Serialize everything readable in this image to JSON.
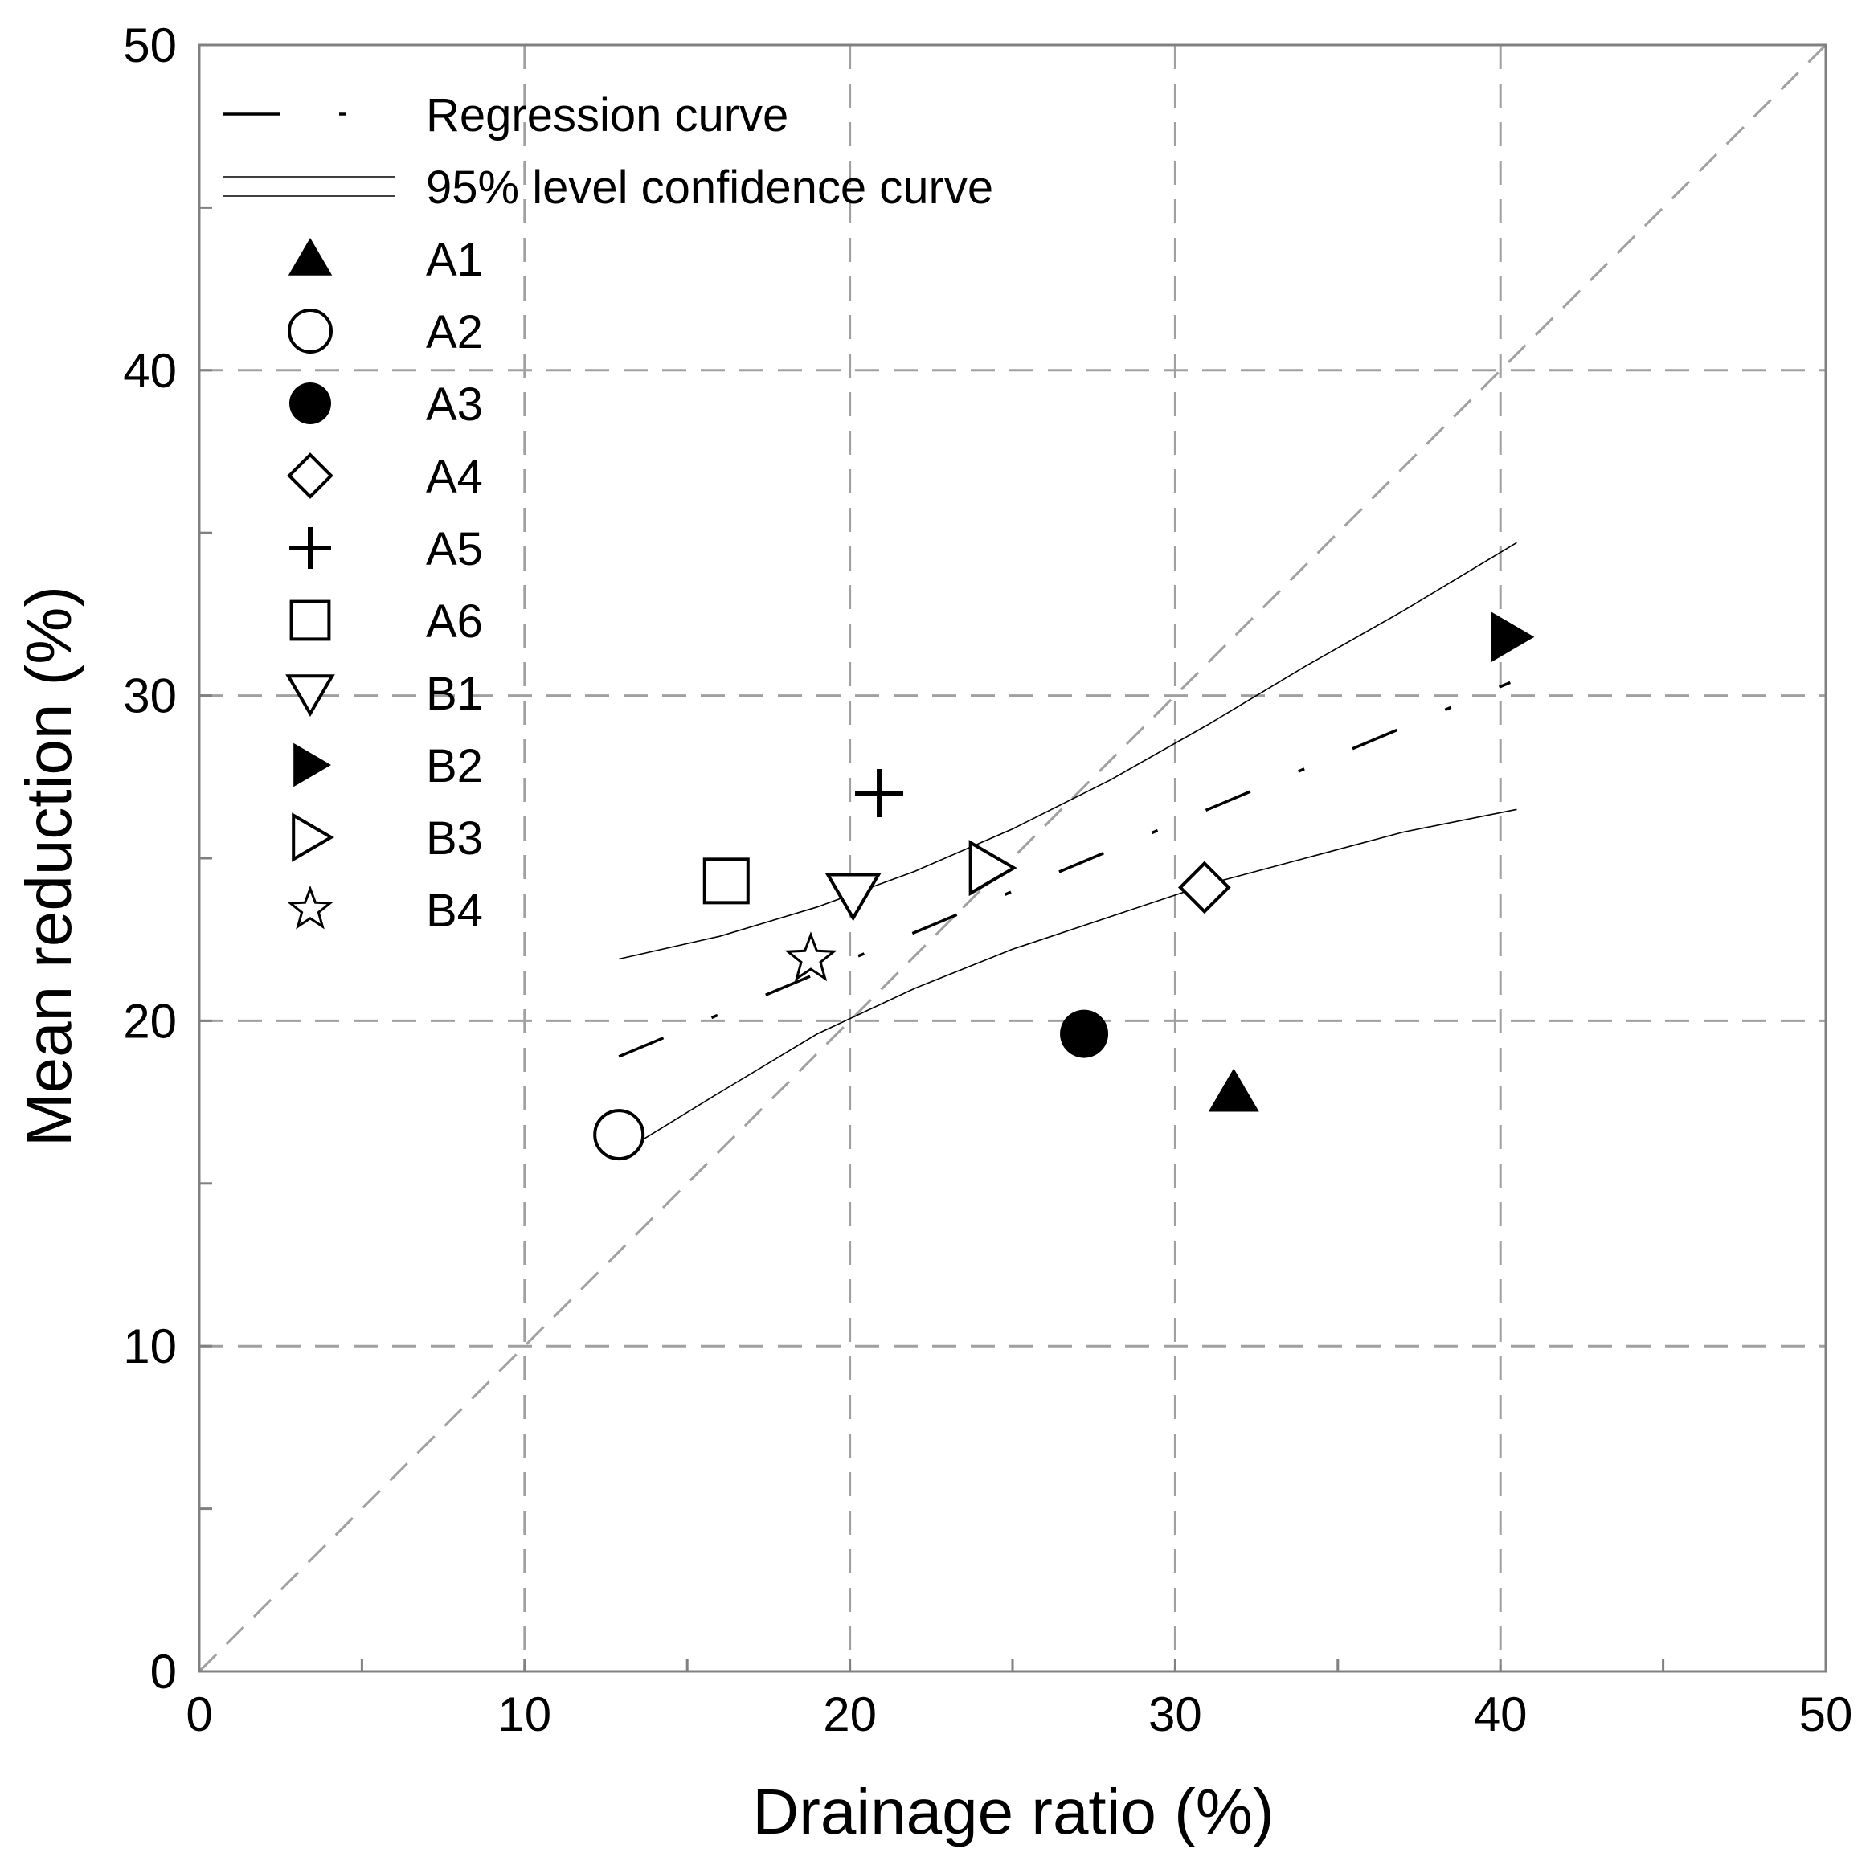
{
  "chart_data": {
    "type": "scatter",
    "title": "",
    "xlabel": "Drainage ratio (%)",
    "ylabel": "Mean reduction (%)",
    "xlim": [
      0,
      50
    ],
    "ylim": [
      0,
      50
    ],
    "xticks": [
      "0",
      "10",
      "20",
      "30",
      "40",
      "50"
    ],
    "yticks": [
      "0",
      "10",
      "20",
      "30",
      "40",
      "50"
    ],
    "minor_tick_step": 5,
    "grid": true,
    "reference_line": {
      "x": [
        0,
        50
      ],
      "y": [
        0,
        50
      ],
      "style": "dashed"
    },
    "colors": {
      "marker": "#000000",
      "grid": "#a0a0a0",
      "axis": "#808080",
      "curve": "#000000"
    },
    "legend": {
      "position": "top-left",
      "entries": [
        {
          "label": "Regression curve",
          "symbol": "dash-dot-line"
        },
        {
          "label": "95% level confidence curve",
          "symbol": "thin-line"
        },
        {
          "label": "A1",
          "symbol": "triangle-up-filled"
        },
        {
          "label": "A2",
          "symbol": "circle-open"
        },
        {
          "label": "A3",
          "symbol": "circle-filled"
        },
        {
          "label": "A4",
          "symbol": "diamond-open"
        },
        {
          "label": "A5",
          "symbol": "plus"
        },
        {
          "label": "A6",
          "symbol": "square-open"
        },
        {
          "label": "B1",
          "symbol": "triangle-down-open"
        },
        {
          "label": "B2",
          "symbol": "triangle-right-filled"
        },
        {
          "label": "B3",
          "symbol": "triangle-right-open"
        },
        {
          "label": "B4",
          "symbol": "star-open"
        }
      ]
    },
    "series": [
      {
        "name": "A1",
        "symbol": "triangle-up-filled",
        "x": [
          31.8
        ],
        "y": [
          17.8
        ]
      },
      {
        "name": "A2",
        "symbol": "circle-open",
        "x": [
          12.9
        ],
        "y": [
          16.5
        ]
      },
      {
        "name": "A3",
        "symbol": "circle-filled",
        "x": [
          27.2
        ],
        "y": [
          19.6
        ]
      },
      {
        "name": "A4",
        "symbol": "diamond-open",
        "x": [
          30.9
        ],
        "y": [
          24.1
        ]
      },
      {
        "name": "A5",
        "symbol": "plus",
        "x": [
          20.9
        ],
        "y": [
          27.0
        ]
      },
      {
        "name": "A6",
        "symbol": "square-open",
        "x": [
          16.2
        ],
        "y": [
          24.3
        ]
      },
      {
        "name": "B1",
        "symbol": "triangle-down-open",
        "x": [
          20.1
        ],
        "y": [
          23.9
        ]
      },
      {
        "name": "B2",
        "symbol": "triangle-right-filled",
        "x": [
          40.3
        ],
        "y": [
          31.8
        ]
      },
      {
        "name": "B3",
        "symbol": "triangle-right-open",
        "x": [
          24.3
        ],
        "y": [
          24.7
        ]
      },
      {
        "name": "B4",
        "symbol": "star-open",
        "x": [
          18.8
        ],
        "y": [
          21.9
        ]
      }
    ],
    "curves": [
      {
        "name": "Regression curve",
        "style": "dash-dot",
        "x": [
          12.9,
          40.3
        ],
        "y": [
          18.9,
          30.4
        ]
      },
      {
        "name": "95% level confidence curve (upper)",
        "style": "thin",
        "x": [
          12.9,
          16,
          19,
          22,
          25,
          28,
          31,
          34,
          37,
          40.5
        ],
        "y": [
          21.9,
          22.6,
          23.5,
          24.6,
          25.9,
          27.4,
          29.1,
          30.9,
          32.6,
          34.7
        ]
      },
      {
        "name": "95% level confidence curve (lower)",
        "style": "thin",
        "x": [
          12.9,
          16,
          19,
          22,
          25,
          28,
          31,
          34,
          37,
          40.5
        ],
        "y": [
          15.9,
          17.8,
          19.6,
          21.0,
          22.2,
          23.2,
          24.2,
          25.0,
          25.8,
          26.5
        ]
      }
    ]
  }
}
